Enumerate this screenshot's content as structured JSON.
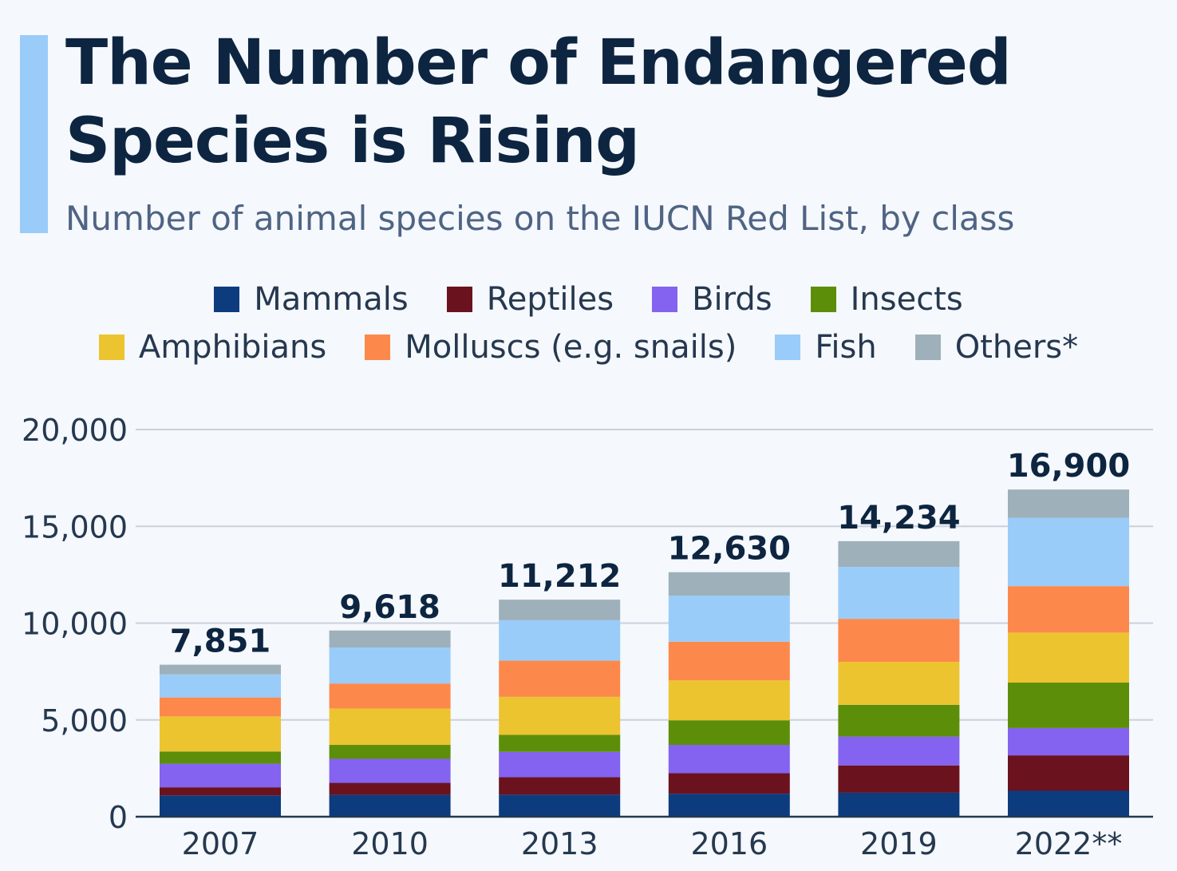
{
  "title": "The Number of Endangered Species is Rising",
  "subtitle": "Number of animal species on the IUCN Red List, by class",
  "colors": {
    "accent": "#99ccf9",
    "Mammals": "#0c3c7e",
    "Reptiles": "#6b121f",
    "Birds": "#8463f0",
    "Insects": "#5d8e0a",
    "Amphibians": "#ecc430",
    "Molluscs": "#fc894b",
    "Fish": "#99ccf9",
    "Others": "#9eb0ba"
  },
  "legend": {
    "row1": [
      "Mammals",
      "Reptiles",
      "Birds",
      "Insects"
    ],
    "row2": [
      "Amphibians",
      "Molluscs (e.g. snails)",
      "Fish",
      "Others*"
    ]
  },
  "chart_data": {
    "type": "bar",
    "stacked": true,
    "categories": [
      "2007",
      "2010",
      "2013",
      "2016",
      "2019",
      "2022**"
    ],
    "totals": [
      "7,851",
      "9,618",
      "11,212",
      "12,630",
      "14,234",
      "16,900"
    ],
    "yticks": [
      "0",
      "5,000",
      "10,000",
      "15,000",
      "20,000"
    ],
    "ylim": [
      0,
      20000
    ],
    "grid": true,
    "legend_position": "top",
    "series": [
      {
        "name": "Mammals",
        "values": [
          1100,
          1130,
          1140,
          1190,
          1240,
          1340
        ]
      },
      {
        "name": "Reptiles",
        "values": [
          420,
          620,
          900,
          1060,
          1410,
          1830
        ]
      },
      {
        "name": "Birds",
        "values": [
          1220,
          1240,
          1310,
          1460,
          1490,
          1410
        ]
      },
      {
        "name": "Insects",
        "values": [
          630,
          720,
          880,
          1270,
          1640,
          2350
        ]
      },
      {
        "name": "Amphibians",
        "values": [
          1810,
          1880,
          1960,
          2060,
          2220,
          2580
        ]
      },
      {
        "name": "Molluscs",
        "values": [
          980,
          1290,
          1870,
          2000,
          2220,
          2400
        ]
      },
      {
        "name": "Fish",
        "values": [
          1190,
          1860,
          2090,
          2380,
          2680,
          3530
        ]
      },
      {
        "name": "Others",
        "values": [
          501,
          878,
          1062,
          1210,
          1334,
          1460
        ]
      }
    ]
  }
}
